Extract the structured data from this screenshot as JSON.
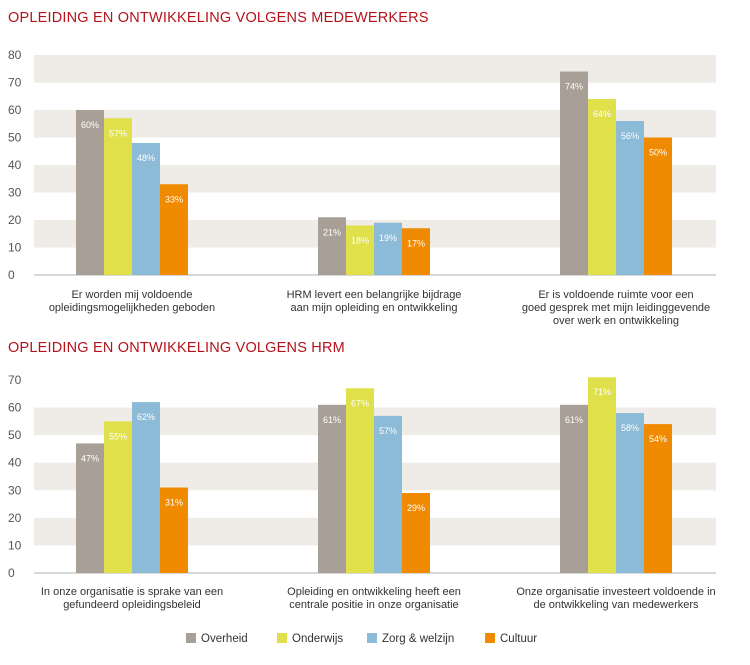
{
  "colors": {
    "band": "#efebe6",
    "axis": "#999999",
    "title": "#b5121b"
  },
  "legend": [
    {
      "name": "Overheid",
      "color": "#a8a096"
    },
    {
      "name": "Onderwijs",
      "color": "#dfe04a"
    },
    {
      "name": "Zorg & welzijn",
      "color": "#8bbbd6"
    },
    {
      "name": "Cultuur",
      "color": "#f08a00"
    }
  ],
  "chart_data": [
    {
      "type": "bar",
      "title": "OPLEIDING EN ONTWIKKELING VOLGENS MEDEWERKERS",
      "ylim": [
        0,
        80
      ],
      "yticks": [
        0,
        10,
        20,
        30,
        40,
        50,
        60,
        70,
        80
      ],
      "grid": true,
      "categories": [
        [
          "Er worden mij voldoende",
          "opleidingsmogelijkheden geboden"
        ],
        [
          "HRM levert een belangrijke bijdrage",
          "aan mijn opleiding en ontwikkeling"
        ],
        [
          "Er is voldoende ruimte voor een",
          "goed gesprek met mijn leidinggevende",
          "over werk en ontwikkeling"
        ]
      ],
      "series": [
        {
          "name": "Overheid",
          "values": [
            60,
            21,
            74
          ],
          "labels": [
            "60%",
            "21%",
            "74%"
          ]
        },
        {
          "name": "Onderwijs",
          "values": [
            57,
            18,
            64
          ],
          "labels": [
            "57%",
            "18%",
            "64%"
          ]
        },
        {
          "name": "Zorg & welzijn",
          "values": [
            48,
            19,
            56
          ],
          "labels": [
            "48%",
            "19%",
            "56%"
          ]
        },
        {
          "name": "Cultuur",
          "values": [
            33,
            17,
            50
          ],
          "labels": [
            "33%",
            "17%",
            "50%"
          ]
        }
      ]
    },
    {
      "type": "bar",
      "title": "OPLEIDING EN ONTWIKKELING VOLGENS HRM",
      "ylim": [
        0,
        70
      ],
      "yticks": [
        0,
        10,
        20,
        30,
        40,
        50,
        60,
        70
      ],
      "grid": true,
      "categories": [
        [
          "In onze organisatie is sprake van een",
          "gefundeerd opleidingsbeleid"
        ],
        [
          "Opleiding en ontwikkeling heeft een",
          "centrale positie in onze organisatie"
        ],
        [
          "Onze organisatie investeert voldoende in",
          "de ontwikkeling van medewerkers"
        ]
      ],
      "series": [
        {
          "name": "Overheid",
          "values": [
            47,
            61,
            61
          ],
          "labels": [
            "47%",
            "61%",
            "61%"
          ]
        },
        {
          "name": "Onderwijs",
          "values": [
            55,
            67,
            71
          ],
          "labels": [
            "55%",
            "67%",
            "71%"
          ]
        },
        {
          "name": "Zorg & welzijn",
          "values": [
            62,
            57,
            58
          ],
          "labels": [
            "62%",
            "57%",
            "58%"
          ]
        },
        {
          "name": "Cultuur",
          "values": [
            31,
            29,
            54
          ],
          "labels": [
            "31%",
            "29%",
            "54%"
          ]
        }
      ]
    }
  ]
}
